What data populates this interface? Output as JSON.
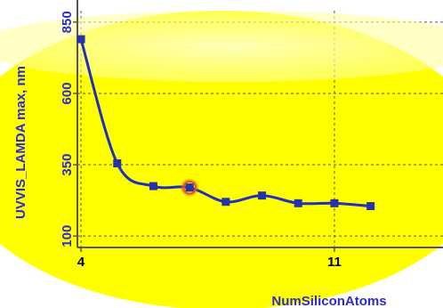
{
  "chart_data": {
    "type": "line",
    "title": "",
    "xlabel": "NumSiliconAtoms",
    "ylabel": "UVVIS_LAMDA max, nm",
    "x_ticks": [
      4,
      11
    ],
    "y_ticks": [
      100,
      350,
      600,
      850
    ],
    "xlim": [
      3.9,
      14
    ],
    "ylim": [
      60,
      890
    ],
    "grid": true,
    "highlighted_index": 3,
    "series": [
      {
        "x": [
          4,
          5,
          6,
          7,
          8,
          9,
          10,
          11,
          12
        ],
        "y": [
          790,
          355,
          275,
          270,
          220,
          242,
          215,
          215,
          205
        ]
      }
    ]
  },
  "colors": {
    "line": "#1f2fbf",
    "marker": "#2733a8",
    "axis_text": "#2b2bd6",
    "highlight": "#e05a2a",
    "plot_bg": "#ffff00",
    "grid": "#555555"
  }
}
